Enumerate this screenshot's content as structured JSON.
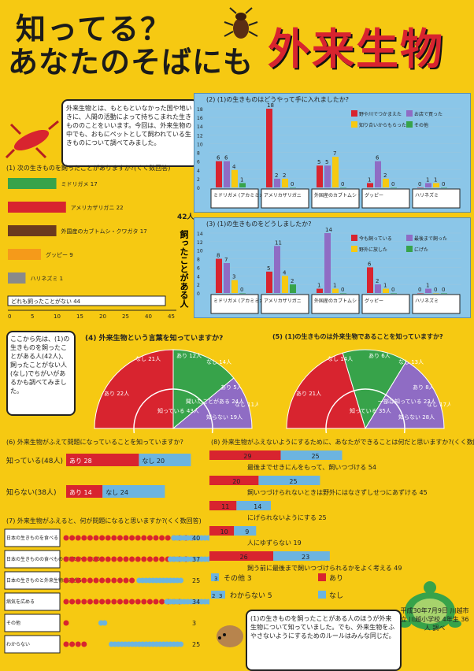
{
  "header": {
    "title_line1": "知ってる？",
    "title_line2": "あなたのそばにも",
    "title_main": "外来生物"
  },
  "intro": {
    "text": "外来生物とは、もともといなかった国や地いきに、人間の活動によって持ちこまれた生きもののことをいいます。今回は、外来生物の中でも、おもにペットとして飼われている生きものについて調べてみました。"
  },
  "q1": {
    "title": "(1) 次の生きものを飼ったことがありますか?(くく数回答)",
    "side_label": "飼ったことがある人",
    "total_label": "42人",
    "axis_ticks": [
      "0",
      "5",
      "10",
      "15",
      "20",
      "25",
      "40",
      "45"
    ],
    "items": [
      {
        "label": "ミドリガメ 17",
        "value": 17,
        "color": "#37a34a"
      },
      {
        "label": "アメリカザリガニ 22",
        "value": 22,
        "color": "#d8242f"
      },
      {
        "label": "外国産のカブトムシ・クワガタ 17",
        "value": 17,
        "color": "#6b3a1e"
      },
      {
        "label": "グッピー 9",
        "value": 9,
        "color": "#f59a1a"
      },
      {
        "label": "ハリネズミ 1",
        "value": 1,
        "color": "#8a8a8a"
      }
    ],
    "none_label": "どれも飼ったことがない 44"
  },
  "q2": {
    "title": "(2) (1)の生きものはどうやって手に入れましたか?",
    "legend": [
      "野や川でつかまえた",
      "お店で買った",
      "知り合いからもらった",
      "その他"
    ],
    "legend_colors": [
      "#d8242f",
      "#8f6cc4",
      "#f6c912",
      "#37a34a"
    ],
    "ylim": [
      0,
      18
    ],
    "yticks": [
      "0",
      "2",
      "4",
      "6",
      "8",
      "10",
      "12",
      "14",
      "16",
      "18"
    ],
    "groups": [
      {
        "label": "ミドリガメ (アカミミガメ)",
        "values": [
          6,
          6,
          4,
          1
        ]
      },
      {
        "label": "アメリカザリガニ",
        "values": [
          18,
          2,
          2,
          0
        ]
      },
      {
        "label": "外国産のカブトムシ・クワガタ",
        "values": [
          5,
          5,
          7,
          0
        ]
      },
      {
        "label": "グッピー",
        "values": [
          1,
          6,
          2,
          0
        ]
      },
      {
        "label": "ハリネズミ",
        "values": [
          0,
          1,
          1,
          0
        ]
      }
    ]
  },
  "q3": {
    "title": "(3) (1)の生きものをどうしましたか?",
    "legend": [
      "今も飼っている",
      "最後まで飼った",
      "野外に放した",
      "にげた"
    ],
    "legend_colors": [
      "#d8242f",
      "#8f6cc4",
      "#f6c912",
      "#37a34a"
    ],
    "ylim": [
      0,
      14
    ],
    "yticks": [
      "0",
      "2",
      "4",
      "6",
      "8",
      "10",
      "12",
      "14"
    ],
    "groups": [
      {
        "label": "ミドリガメ (アカミミガメ)",
        "values": [
          8,
          7,
          3,
          0
        ]
      },
      {
        "label": "アメリカザリガニ",
        "values": [
          5,
          11,
          4,
          2
        ]
      },
      {
        "label": "外国産のカブトムシ・クワガタ",
        "values": [
          1,
          14,
          1,
          0
        ]
      },
      {
        "label": "グッピー",
        "values": [
          6,
          2,
          1,
          0
        ]
      },
      {
        "label": "ハリネズミ",
        "values": [
          0,
          1,
          0,
          0
        ]
      }
    ]
  },
  "note_left": "ここから先は、(1)の生きものを飼ったことがある人(42人)、飼ったことがない人(なし)でちがいがあるかも調べてみました。",
  "q4": {
    "title": "(4) 外来生物という言葉を知っていますか?",
    "labels": [
      "あり 22人",
      "なし 21人",
      "あり 12人",
      "なし 14人",
      "知っている 43人",
      "聞いたことがある 24人",
      "あり 5人",
      "なし 11人",
      "知らない 19人"
    ],
    "segments": [
      {
        "label": "知っている",
        "value": 43,
        "color": "#d8242f"
      },
      {
        "label": "聞いたことがある",
        "value": 24,
        "color": "#37a34a"
      },
      {
        "label": "知らない",
        "value": 19,
        "color": "#8f6cc4"
      }
    ]
  },
  "q5": {
    "title": "(5) (1)の生きものは外来生物であることを知っていますか?",
    "labels": [
      "あり 21人",
      "なし 14人",
      "あり 6人",
      "なし 13人",
      "知っている 35人",
      "一部は知っている 23人",
      "あり 8人",
      "なし 17人",
      "知らない 28人"
    ],
    "segments": [
      {
        "label": "知っている",
        "value": 35,
        "color": "#d8242f"
      },
      {
        "label": "一部は知っている",
        "value": 23,
        "color": "#37a34a"
      },
      {
        "label": "知らない",
        "value": 28,
        "color": "#8f6cc4"
      }
    ]
  },
  "q6": {
    "title": "(6) 外来生物がふえて問題になっていることを知っていますか?",
    "rows": [
      {
        "label": "知っている(48人)",
        "ari": "あり 28",
        "nashi": "なし 20",
        "ari_v": 28,
        "nashi_v": 20
      },
      {
        "label": "知らない(38人)",
        "ari": "あり 14",
        "nashi": "なし 24",
        "ari_v": 14,
        "nashi_v": 24
      }
    ]
  },
  "q7": {
    "title": "(7) 外来生物がふえると、何が問題になると思いますか?(くく数回答)",
    "rows": [
      {
        "label": "日本の生きものを食べる",
        "ari": 22,
        "nashi": 18,
        "total": "40"
      },
      {
        "label": "日本の生きものの食べものやすみかをうばう",
        "ari": 21,
        "nashi": 16,
        "total": "37"
      },
      {
        "label": "日本の生きものと外来生物がまざる",
        "ari": 12,
        "nashi": 13,
        "total": "25"
      },
      {
        "label": "病気を広める",
        "ari": 20,
        "nashi": 14,
        "total": "34"
      },
      {
        "label": "その他",
        "ari": 1,
        "nashi": 2,
        "total": "3"
      },
      {
        "label": "わからない",
        "ari": 4,
        "nashi": 21,
        "total": "25"
      }
    ],
    "legend": [
      "あり 4人",
      "なし 4人"
    ]
  },
  "q8": {
    "title": "(8) 外来生物がふえないようにするために、あなたができることは何だと思いますか?(くく数回答)",
    "items": [
      {
        "label": "最後までせきにんをもって、飼いつづける 54",
        "ari": 29,
        "nashi": 25
      },
      {
        "label": "飼いつづけられないときは野外にはなさずしせつにあずける 45",
        "ari": 20,
        "nashi": 25
      },
      {
        "label": "にげられないようにする 25",
        "ari": 11,
        "nashi": 14
      },
      {
        "label": "人にゆずらない 19",
        "ari": 10,
        "nashi": 9
      },
      {
        "label": "飼う前に最後まで飼いつづけられるかをよく考える 49",
        "ari": 26,
        "nashi": 23
      }
    ],
    "other": "その他 3",
    "other_vals": [
      "3"
    ],
    "unknown": "わからない 5",
    "unknown_vals": [
      "2",
      "3"
    ],
    "legend_ari": "あり",
    "legend_nashi": "なし"
  },
  "footer": {
    "text": "(1)の生きものを飼ったことがある人のほうが外来生物について知っていました。でも、外来生物をふやさないようにするためのルールはみんな同じだ。",
    "signature": "平成30年7月9日 川越市立 川越小学校 4年生 36人 調べ"
  },
  "colors": {
    "ari": "#d8242f",
    "nashi": "#6cb4e0",
    "purple": "#8f6cc4",
    "green": "#37a34a",
    "yellow": "#f6c912"
  }
}
